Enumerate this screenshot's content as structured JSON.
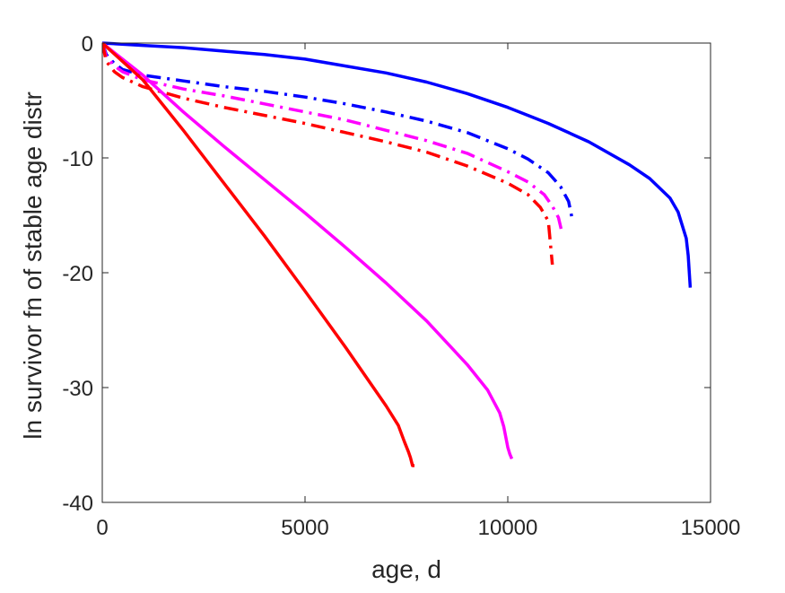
{
  "chart_data": {
    "type": "line",
    "title": "",
    "xlabel": "age, d",
    "ylabel": "ln survivor fn of stable age distr",
    "xlim": [
      0,
      15000
    ],
    "ylim": [
      -40,
      0
    ],
    "xticks": [
      0,
      5000,
      10000,
      15000
    ],
    "yticks": [
      0,
      -10,
      -20,
      -30,
      -40
    ],
    "xtick_labels": [
      "0",
      "5000",
      "10000",
      "15000"
    ],
    "ytick_labels": [
      "0",
      "-10",
      "-20",
      "-30",
      "-40"
    ],
    "grid": false,
    "legend": "none",
    "series": [
      {
        "color": "#0000ff",
        "style": "solid",
        "x": [
          0,
          1000,
          2000,
          3000,
          4000,
          5000,
          6000,
          7000,
          8000,
          9000,
          10000,
          11000,
          12000,
          13000,
          13500,
          14000,
          14200,
          14400,
          14450,
          14500
        ],
        "y": [
          0,
          -0.2,
          -0.4,
          -0.7,
          -1.0,
          -1.4,
          -2.0,
          -2.6,
          -3.4,
          -4.4,
          -5.6,
          -7.0,
          -8.6,
          -10.6,
          -11.8,
          -13.5,
          -14.7,
          -17.0,
          -18.5,
          -21.3
        ]
      },
      {
        "color": "#0000ff",
        "style": "dashdot",
        "x": [
          0,
          100,
          300,
          500,
          1000,
          2000,
          3000,
          4000,
          5000,
          6000,
          7000,
          8000,
          9000,
          10000,
          10500,
          11000,
          11300,
          11500,
          11600
        ],
        "y": [
          0,
          -1.0,
          -1.8,
          -2.3,
          -2.8,
          -3.3,
          -3.8,
          -4.2,
          -4.7,
          -5.3,
          -6.0,
          -6.8,
          -7.8,
          -9.2,
          -10.1,
          -11.3,
          -12.5,
          -13.8,
          -15.5
        ]
      },
      {
        "color": "#ff00ff",
        "style": "dashdot",
        "x": [
          0,
          100,
          300,
          500,
          1000,
          2000,
          3000,
          4000,
          5000,
          6000,
          7000,
          8000,
          9000,
          10000,
          10500,
          10900,
          11100,
          11250,
          11350
        ],
        "y": [
          0,
          -1.2,
          -2.0,
          -2.5,
          -3.2,
          -4.0,
          -4.6,
          -5.3,
          -6.0,
          -6.7,
          -7.6,
          -8.5,
          -9.6,
          -11.2,
          -12.1,
          -13.2,
          -14.2,
          -15.2,
          -16.7
        ]
      },
      {
        "color": "#ff0000",
        "style": "dashdot",
        "x": [
          0,
          100,
          300,
          500,
          1000,
          2000,
          3000,
          4000,
          5000,
          6000,
          7000,
          8000,
          9000,
          10000,
          10500,
          10800,
          11000,
          11100
        ],
        "y": [
          0,
          -1.6,
          -2.5,
          -3.0,
          -3.8,
          -4.8,
          -5.6,
          -6.3,
          -7.0,
          -7.8,
          -8.6,
          -9.5,
          -10.7,
          -12.2,
          -13.2,
          -14.3,
          -15.5,
          -19.3
        ]
      },
      {
        "color": "#ff00ff",
        "style": "solid",
        "x": [
          0,
          1000,
          2000,
          3000,
          4000,
          5000,
          6000,
          7000,
          8000,
          9000,
          9500,
          9800,
          9900,
          10000,
          10050,
          10100
        ],
        "y": [
          0,
          -2.8,
          -6.0,
          -9.0,
          -11.9,
          -14.8,
          -17.8,
          -20.9,
          -24.2,
          -28.0,
          -30.2,
          -32.2,
          -33.4,
          -35.2,
          -35.8,
          -36.2
        ]
      },
      {
        "color": "#ff0000",
        "style": "solid",
        "x": [
          0,
          1000,
          2000,
          3000,
          4000,
          5000,
          6000,
          7000,
          7300,
          7450,
          7550,
          7600,
          7650,
          7700
        ],
        "y": [
          0,
          -3.2,
          -7.6,
          -12.2,
          -16.8,
          -21.6,
          -26.5,
          -31.6,
          -33.3,
          -34.7,
          -35.6,
          -36.1,
          -36.8,
          -36.8
        ]
      }
    ]
  }
}
